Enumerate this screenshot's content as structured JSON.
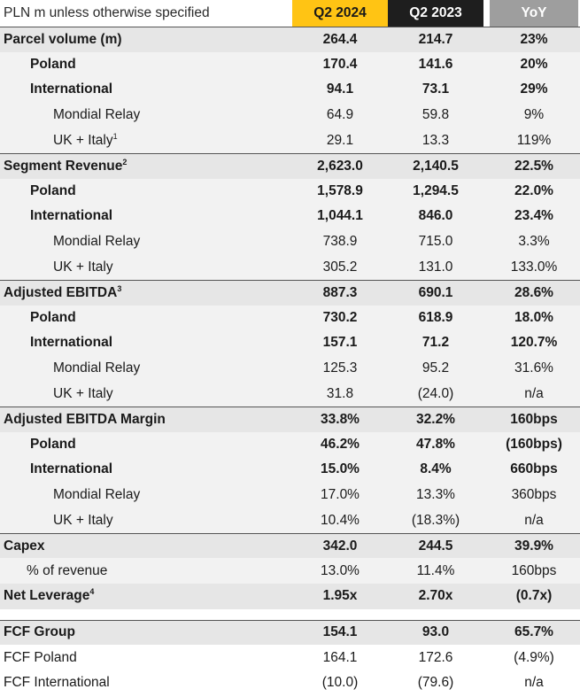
{
  "header": {
    "label": "PLN m unless otherwise specified",
    "col1": "Q2 2024",
    "col2": "Q2 2023",
    "col3": "YoY"
  },
  "rows": [
    {
      "label": "Parcel volume (m)",
      "sup": "",
      "v1": "264.4",
      "v2": "214.7",
      "v3": "23%"
    },
    {
      "label": "Poland",
      "sup": "",
      "v1": "170.4",
      "v2": "141.6",
      "v3": "20%"
    },
    {
      "label": "International",
      "sup": "",
      "v1": "94.1",
      "v2": "73.1",
      "v3": "29%"
    },
    {
      "label": "Mondial Relay",
      "sup": "",
      "v1": "64.9",
      "v2": "59.8",
      "v3": "9%"
    },
    {
      "label": "UK + Italy",
      "sup": "1",
      "v1": "29.1",
      "v2": "13.3",
      "v3": "119%"
    },
    {
      "label": "Segment Revenue",
      "sup": "2",
      "v1": "2,623.0",
      "v2": "2,140.5",
      "v3": "22.5%"
    },
    {
      "label": "Poland",
      "sup": "",
      "v1": "1,578.9",
      "v2": "1,294.5",
      "v3": "22.0%"
    },
    {
      "label": "International",
      "sup": "",
      "v1": "1,044.1",
      "v2": "846.0",
      "v3": "23.4%"
    },
    {
      "label": "Mondial Relay",
      "sup": "",
      "v1": "738.9",
      "v2": "715.0",
      "v3": "3.3%"
    },
    {
      "label": "UK + Italy",
      "sup": "",
      "v1": "305.2",
      "v2": "131.0",
      "v3": "133.0%"
    },
    {
      "label": "Adjusted EBITDA",
      "sup": "3",
      "v1": "887.3",
      "v2": "690.1",
      "v3": "28.6%"
    },
    {
      "label": "Poland",
      "sup": "",
      "v1": "730.2",
      "v2": "618.9",
      "v3": "18.0%"
    },
    {
      "label": "International",
      "sup": "",
      "v1": "157.1",
      "v2": "71.2",
      "v3": "120.7%"
    },
    {
      "label": "Mondial Relay",
      "sup": "",
      "v1": "125.3",
      "v2": "95.2",
      "v3": "31.6%"
    },
    {
      "label": "UK + Italy",
      "sup": "",
      "v1": "31.8",
      "v2": "(24.0)",
      "v3": "n/a"
    },
    {
      "label": "Adjusted EBITDA Margin",
      "sup": "",
      "v1": "33.8%",
      "v2": "32.2%",
      "v3": "160bps"
    },
    {
      "label": "Poland",
      "sup": "",
      "v1": "46.2%",
      "v2": "47.8%",
      "v3": "(160bps)"
    },
    {
      "label": "International",
      "sup": "",
      "v1": "15.0%",
      "v2": "8.4%",
      "v3": "660bps"
    },
    {
      "label": "Mondial Relay",
      "sup": "",
      "v1": "17.0%",
      "v2": "13.3%",
      "v3": "360bps"
    },
    {
      "label": "UK + Italy",
      "sup": "",
      "v1": "10.4%",
      "v2": "(18.3%)",
      "v3": "n/a"
    },
    {
      "label": "Capex",
      "sup": "",
      "v1": "342.0",
      "v2": "244.5",
      "v3": "39.9%"
    },
    {
      "label": "% of revenue",
      "sup": "",
      "v1": "13.0%",
      "v2": "11.4%",
      "v3": "160bps"
    },
    {
      "label": "Net Leverage",
      "sup": "4",
      "v1": "1.95x",
      "v2": "2.70x",
      "v3": "(0.7x)"
    },
    {
      "label": "FCF Group",
      "sup": "",
      "v1": "154.1",
      "v2": "93.0",
      "v3": "65.7%"
    },
    {
      "label": "FCF Poland",
      "sup": "",
      "v1": "164.1",
      "v2": "172.6",
      "v3": "(4.9%)"
    },
    {
      "label": "FCF International",
      "sup": "",
      "v1": "(10.0)",
      "v2": "(79.6)",
      "v3": "n/a"
    }
  ]
}
